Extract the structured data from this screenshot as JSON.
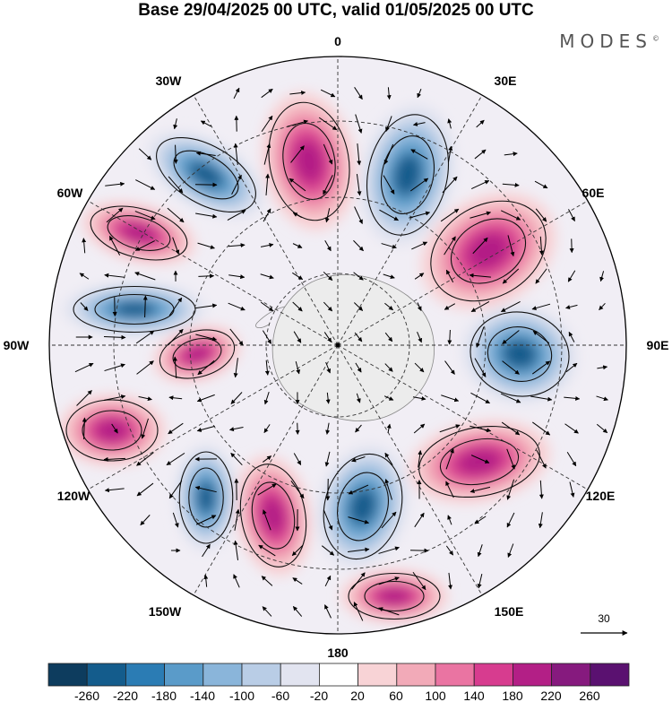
{
  "title": "Base 29/04/2025 00 UTC, valid 01/05/2025 00 UTC",
  "brand": "MODES",
  "brand_mark": "©",
  "longitude_labels": {
    "0": "0",
    "30E": "30E",
    "60E": "60E",
    "90E": "90E",
    "120E": "120E",
    "150E": "150E",
    "180": "180",
    "150W": "150W",
    "120W": "120W",
    "90W": "90W",
    "60W": "60W",
    "30W": "30W"
  },
  "reference_vector": {
    "label": "30",
    "icon": "reference-arrow-icon"
  },
  "colorbar": {
    "tick_labels": [
      "-260",
      "-220",
      "-180",
      "-140",
      "-100",
      "-60",
      "-20",
      "20",
      "60",
      "100",
      "140",
      "180",
      "220",
      "260"
    ],
    "colors": [
      "#0d3c5e",
      "#145c8c",
      "#2b7cb4",
      "#5a9bc9",
      "#8ab5da",
      "#b9cde6",
      "#e2e4f0",
      "#ffffff",
      "#f8d3d6",
      "#f2aab8",
      "#ea74a2",
      "#d73c8f",
      "#b31f86",
      "#861a7e",
      "#5a1170"
    ]
  },
  "map": {
    "projection": "south polar stereographic",
    "land_color": "#ececec",
    "anomalies": [
      {
        "sign": "positive",
        "level": 220,
        "near": "0"
      },
      {
        "sign": "negative",
        "level": -260,
        "near": "30E"
      },
      {
        "sign": "positive",
        "level": 220,
        "near": "60E"
      },
      {
        "sign": "negative",
        "level": -260,
        "near": "90E"
      },
      {
        "sign": "positive",
        "level": 220,
        "near": "120E"
      },
      {
        "sign": "negative",
        "level": -180,
        "near": "150E-180"
      },
      {
        "sign": "positive",
        "level": 140,
        "near": "150W"
      },
      {
        "sign": "positive",
        "level": 140,
        "near": "90W"
      },
      {
        "sign": "negative",
        "level": -180,
        "near": "60W-80W"
      },
      {
        "sign": "negative",
        "level": -140,
        "near": "30W-45W"
      },
      {
        "sign": "positive",
        "level": 100,
        "near": "60W"
      }
    ]
  }
}
